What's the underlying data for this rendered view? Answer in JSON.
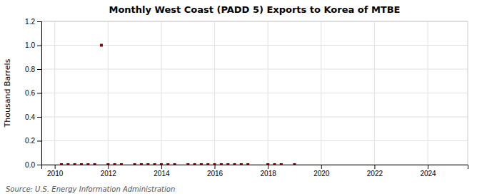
{
  "chart_data": {
    "type": "scatter",
    "title": "Monthly West Coast (PADD 5) Exports to Korea of MTBE",
    "ylabel": "Thousand Barrels",
    "source": "Source: U.S. Energy Information Administration",
    "color": "#8b0000",
    "marker": "square",
    "x": [
      2010.25,
      2010.5,
      2010.75,
      2011.0,
      2011.25,
      2011.5,
      2011.75,
      2012.0,
      2012.25,
      2012.5,
      2013.0,
      2013.25,
      2013.5,
      2013.75,
      2014.0,
      2014.25,
      2014.5,
      2015.0,
      2015.25,
      2015.5,
      2015.75,
      2016.0,
      2016.25,
      2016.5,
      2016.75,
      2017.0,
      2017.25,
      2018.0,
      2018.25,
      2018.5,
      2019.0
    ],
    "values": [
      0.0,
      0.0,
      0.0,
      0.0,
      0.0,
      0.0,
      1.0,
      0.0,
      0.0,
      0.0,
      0.0,
      0.0,
      0.0,
      0.0,
      0.0,
      0.0,
      0.0,
      0.0,
      0.0,
      0.0,
      0.0,
      0.0,
      0.0,
      0.0,
      0.0,
      0.0,
      0.0,
      0.0,
      0.0,
      0.0,
      0.0
    ],
    "xlim": [
      2009.5,
      2025.5
    ],
    "xticks": [
      2010,
      2012,
      2014,
      2016,
      2018,
      2020,
      2022,
      2024
    ],
    "ylim": [
      0.0,
      1.2
    ],
    "yticks": [
      {
        "value": 0.0,
        "label": "0.0"
      },
      0.2,
      0.4,
      0.6,
      0.8,
      {
        "value": 1.0,
        "label": "1.0"
      },
      1.2
    ],
    "grid": true
  }
}
